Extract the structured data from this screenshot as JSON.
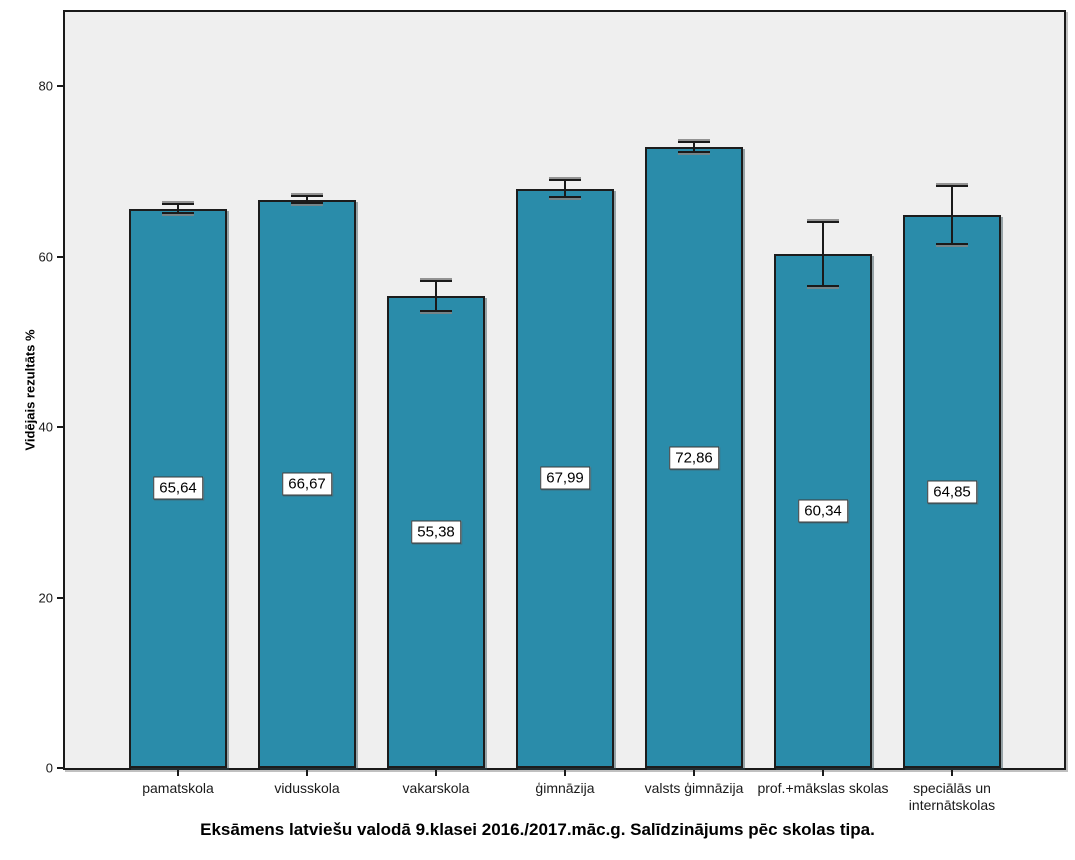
{
  "chart_data": {
    "type": "bar",
    "title": "Eksāmens latviešu valodā 9.klasei 2016./2017.māc.g. Salīdzinājums pēc skolas tipa.",
    "xlabel": "",
    "ylabel": "Vidējais rezultāts %",
    "categories": [
      "pamatskola",
      "vidusskola",
      "vakarskola",
      "ģimnāzija",
      "valsts ģimnāzija",
      "prof.+mākslas skolas",
      "speciālās un internātskolas"
    ],
    "values": [
      65.64,
      66.67,
      55.38,
      67.99,
      72.86,
      60.34,
      64.85
    ],
    "value_labels": [
      "65,64",
      "66,67",
      "55,38",
      "67,99",
      "72,86",
      "60,34",
      "64,85"
    ],
    "error_bars_plus_minus": [
      0.5,
      0.4,
      1.75,
      1.0,
      0.6,
      3.75,
      3.4
    ],
    "yticks": [
      0,
      20,
      40,
      60,
      80
    ],
    "ylim": [
      0,
      88.7
    ],
    "grid": false,
    "legend": "none",
    "colors": {
      "bar_fill": "#2a8caa",
      "bar_border": "#1c1c1c",
      "plot_background": "#efefef",
      "page_background": "#ffffff",
      "axis": "#1a1a1a",
      "value_label_background": "#ffffff",
      "value_label_border": "#3a3a3a"
    }
  }
}
